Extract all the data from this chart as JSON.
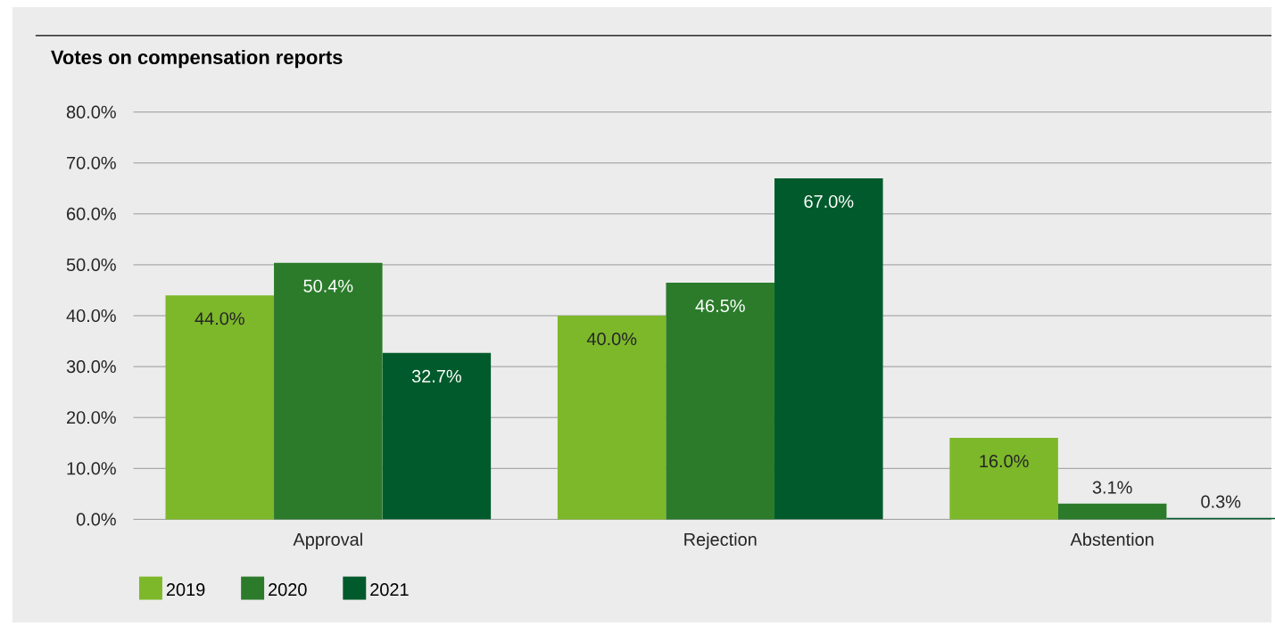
{
  "chart_data": {
    "type": "bar",
    "title": "Votes on compensation reports",
    "categories": [
      "Approval",
      "Rejection",
      "Abstention"
    ],
    "series": [
      {
        "name": "2019",
        "color": "#7db82a",
        "values": [
          44.0,
          40.0,
          16.0
        ],
        "value_labels": [
          "44.0%",
          "40.0%",
          "16.0%"
        ]
      },
      {
        "name": "2020",
        "color": "#2b7b2b",
        "values": [
          50.4,
          46.5,
          3.1
        ],
        "value_labels": [
          "50.4%",
          "46.5%",
          "3.1%"
        ]
      },
      {
        "name": "2021",
        "color": "#005a2b",
        "values": [
          32.7,
          67.0,
          0.3
        ],
        "value_labels": [
          "32.7%",
          "67.0%",
          "0.3%"
        ]
      }
    ],
    "ylim": [
      0,
      80
    ],
    "yticks": [
      {
        "value": 0,
        "label": "0.0%"
      },
      {
        "value": 10,
        "label": "10.0%"
      },
      {
        "value": 20,
        "label": "20.0%"
      },
      {
        "value": 30,
        "label": "30.0%"
      },
      {
        "value": 40,
        "label": "40.0%"
      },
      {
        "value": 50,
        "label": "50.0%"
      },
      {
        "value": 60,
        "label": "60.0%"
      },
      {
        "value": 70,
        "label": "70.0%"
      },
      {
        "value": 80,
        "label": "80.0%"
      }
    ],
    "grid": "y",
    "legend": "bottom"
  }
}
